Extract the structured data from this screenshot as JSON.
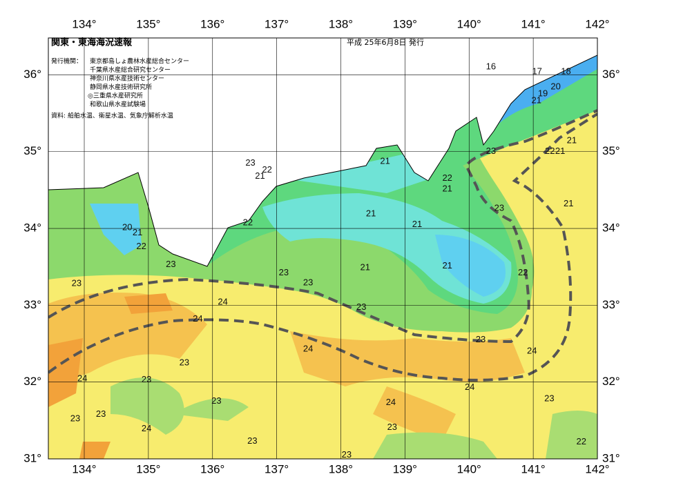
{
  "header": {
    "title": "関東・東海海況速報",
    "date": "平成 25年6月8日 発行"
  },
  "issuers": {
    "label": "発行機関：",
    "names": [
      "東京都島しょ農林水産総合センター",
      "千葉県水産総合研究センター",
      "神奈川県水産技術センター",
      "静岡県水産技術研究所",
      "◎三重県水産研究所",
      "和歌山県水産試験場"
    ]
  },
  "source": "資料: 船舶水温、衛星水温、気象庁解析水温",
  "map": {
    "xlim": [
      133.44,
      142
    ],
    "ylim": [
      31,
      36.48
    ],
    "xticks": [
      {
        "value": 134,
        "label": "134°"
      },
      {
        "value": 135,
        "label": "135°"
      },
      {
        "value": 136,
        "label": "136°"
      },
      {
        "value": 137,
        "label": "137°"
      },
      {
        "value": 138,
        "label": "138°"
      },
      {
        "value": 139,
        "label": "139°"
      },
      {
        "value": 140,
        "label": "140°"
      },
      {
        "value": 141,
        "label": "141°"
      },
      {
        "value": 142,
        "label": "142°"
      }
    ],
    "yticks": [
      {
        "value": 31,
        "label": "31°"
      },
      {
        "value": 32,
        "label": "32°"
      },
      {
        "value": 33,
        "label": "33°"
      },
      {
        "value": 34,
        "label": "34°"
      },
      {
        "value": 35,
        "label": "35°"
      },
      {
        "value": 36,
        "label": "36°"
      }
    ],
    "contour_labels": [
      {
        "label": 16,
        "lon": 140.34,
        "lat": 36.1
      },
      {
        "label": 17,
        "lon": 141.06,
        "lat": 36.04
      },
      {
        "label": 18,
        "lon": 141.51,
        "lat": 36.04
      },
      {
        "label": 20,
        "lon": 141.35,
        "lat": 35.84
      },
      {
        "label": 19,
        "lon": 141.15,
        "lat": 35.75
      },
      {
        "label": 21,
        "lon": 141.05,
        "lat": 35.66
      },
      {
        "label": 23,
        "lon": 140.34,
        "lat": 35.0
      },
      {
        "label": 22,
        "lon": 141.26,
        "lat": 35.0
      },
      {
        "label": 21,
        "lon": 141.42,
        "lat": 35.0
      },
      {
        "label": 21,
        "lon": 141.6,
        "lat": 35.14
      },
      {
        "label": 21,
        "lon": 138.69,
        "lat": 34.87
      },
      {
        "label": 23,
        "lon": 136.59,
        "lat": 34.85
      },
      {
        "label": 22,
        "lon": 136.85,
        "lat": 34.76
      },
      {
        "label": 21,
        "lon": 136.74,
        "lat": 34.68
      },
      {
        "label": 22,
        "lon": 139.66,
        "lat": 34.65
      },
      {
        "label": 21,
        "lon": 139.66,
        "lat": 34.51
      },
      {
        "label": 23,
        "lon": 140.47,
        "lat": 34.26
      },
      {
        "label": 21,
        "lon": 138.47,
        "lat": 34.19
      },
      {
        "label": 21,
        "lon": 139.19,
        "lat": 34.05
      },
      {
        "label": 21,
        "lon": 141.55,
        "lat": 34.32
      },
      {
        "label": 22,
        "lon": 136.55,
        "lat": 34.07
      },
      {
        "label": 20,
        "lon": 134.67,
        "lat": 34.01
      },
      {
        "label": 21,
        "lon": 134.83,
        "lat": 33.94
      },
      {
        "label": 22,
        "lon": 134.89,
        "lat": 33.76
      },
      {
        "label": 23,
        "lon": 135.35,
        "lat": 33.53
      },
      {
        "label": 21,
        "lon": 139.66,
        "lat": 33.51
      },
      {
        "label": 21,
        "lon": 138.38,
        "lat": 33.49
      },
      {
        "label": 23,
        "lon": 137.11,
        "lat": 33.42
      },
      {
        "label": 22,
        "lon": 140.84,
        "lat": 33.42
      },
      {
        "label": 23,
        "lon": 133.88,
        "lat": 33.28
      },
      {
        "label": 23,
        "lon": 137.49,
        "lat": 33.29
      },
      {
        "label": 24,
        "lon": 136.16,
        "lat": 33.04
      },
      {
        "label": 23,
        "lon": 138.32,
        "lat": 32.97
      },
      {
        "label": 24,
        "lon": 135.77,
        "lat": 32.82
      },
      {
        "label": 23,
        "lon": 140.18,
        "lat": 32.55
      },
      {
        "label": 24,
        "lon": 137.49,
        "lat": 32.43
      },
      {
        "label": 24,
        "lon": 140.98,
        "lat": 32.4
      },
      {
        "label": 23,
        "lon": 135.56,
        "lat": 32.25
      },
      {
        "label": 24,
        "lon": 133.97,
        "lat": 32.04
      },
      {
        "label": 23,
        "lon": 134.97,
        "lat": 32.03
      },
      {
        "label": 24,
        "lon": 140.01,
        "lat": 31.93
      },
      {
        "label": 23,
        "lon": 136.06,
        "lat": 31.75
      },
      {
        "label": 24,
        "lon": 138.78,
        "lat": 31.73
      },
      {
        "label": 23,
        "lon": 141.25,
        "lat": 31.78
      },
      {
        "label": 23,
        "lon": 134.26,
        "lat": 31.58
      },
      {
        "label": 23,
        "lon": 133.86,
        "lat": 31.52
      },
      {
        "label": 23,
        "lon": 138.8,
        "lat": 31.41
      },
      {
        "label": 24,
        "lon": 134.97,
        "lat": 31.39
      },
      {
        "label": 23,
        "lon": 136.62,
        "lat": 31.23
      },
      {
        "label": 22,
        "lon": 141.75,
        "lat": 31.22
      },
      {
        "label": 23,
        "lon": 138.09,
        "lat": 31.05
      }
    ]
  }
}
